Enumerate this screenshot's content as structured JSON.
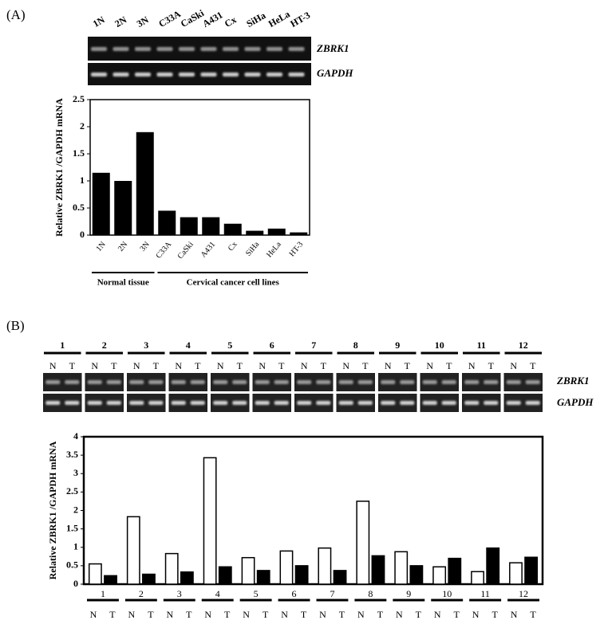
{
  "panel_labels": [
    "(A)",
    "(B)"
  ],
  "gel_rows": [
    "ZBRK1",
    "GAPDH"
  ],
  "chart_data": [
    {
      "type": "bar",
      "y_label": "Relative ZBRK1 /GAPDH mRNA",
      "categories": [
        "1N",
        "2N",
        "3N",
        "C33A",
        "CaSki",
        "A431",
        "Cx",
        "SiHa",
        "HeLa",
        "HT-3"
      ],
      "values": [
        1.15,
        1.0,
        1.9,
        0.45,
        0.33,
        0.33,
        0.21,
        0.08,
        0.12,
        0.05
      ],
      "color": "#000000",
      "ylim": [
        0,
        2.5
      ],
      "yticks": [
        0,
        0.5,
        1,
        1.5,
        2,
        2.5
      ],
      "groups": [
        {
          "label": "Normal tissue",
          "first": "1N",
          "last": "3N"
        },
        {
          "label": "Cervical cancer cell lines",
          "first": "C33A",
          "last": "HT-3"
        }
      ]
    },
    {
      "type": "bar",
      "y_label": "Relative ZBRK1 /GAPDH mRNA",
      "categories": [
        "1",
        "2",
        "3",
        "4",
        "5",
        "6",
        "7",
        "8",
        "9",
        "10",
        "11",
        "12"
      ],
      "series": [
        {
          "name": "N",
          "color": "#ffffff",
          "values": [
            0.55,
            1.83,
            0.83,
            3.43,
            0.72,
            0.9,
            0.98,
            2.25,
            0.88,
            0.47,
            0.34,
            0.58
          ]
        },
        {
          "name": "T",
          "color": "#000000",
          "values": [
            0.23,
            0.27,
            0.33,
            0.47,
            0.37,
            0.5,
            0.37,
            0.77,
            0.5,
            0.7,
            0.98,
            0.73
          ]
        }
      ],
      "ylim": [
        0,
        4
      ],
      "yticks": [
        0,
        0.5,
        1,
        1.5,
        2,
        2.5,
        3,
        3.5,
        4
      ]
    }
  ]
}
